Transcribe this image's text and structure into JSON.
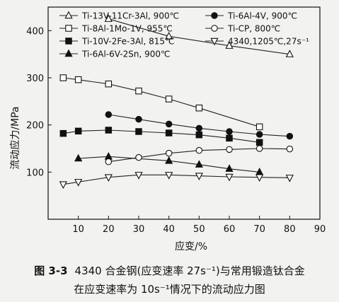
{
  "chart_data": {
    "type": "line",
    "xlabel": "应变/%",
    "ylabel": "流动应力/MPa",
    "xlim": [
      0,
      90
    ],
    "ylim": [
      0,
      450
    ],
    "xticks": [
      10,
      20,
      30,
      40,
      50,
      60,
      70,
      80,
      90
    ],
    "yticks": [
      100,
      200,
      300,
      400
    ],
    "grid": false,
    "legend_position": "top",
    "series": [
      {
        "name": "Ti-13V-11Cr-3Al, 900℃",
        "marker": "triangle-up-open",
        "x": [
          20,
          40,
          60,
          80
        ],
        "y": [
          425,
          388,
          368,
          350
        ]
      },
      {
        "name": "Ti-8Al-1Mo-1V, 955℃",
        "marker": "square-open",
        "x": [
          5,
          10,
          20,
          30,
          40,
          50,
          70
        ],
        "y": [
          300,
          296,
          287,
          272,
          255,
          236,
          196
        ]
      },
      {
        "name": "Ti-10V-2Fe-3Al, 815℃",
        "marker": "square-filled",
        "x": [
          5,
          10,
          20,
          30,
          40,
          50,
          60,
          70
        ],
        "y": [
          182,
          187,
          189,
          186,
          183,
          179,
          172,
          163
        ]
      },
      {
        "name": "Ti-6Al-6V-2Sn, 900℃",
        "marker": "triangle-up-filled",
        "x": [
          10,
          20,
          40,
          50,
          60,
          70
        ],
        "y": [
          129,
          133,
          124,
          116,
          107,
          100
        ]
      },
      {
        "name": "Ti-6Al-4V, 900℃",
        "marker": "circle-filled",
        "x": [
          20,
          30,
          40,
          50,
          60,
          70,
          80
        ],
        "y": [
          222,
          212,
          202,
          193,
          186,
          180,
          176
        ]
      },
      {
        "name": "Ti-CP, 800℃",
        "marker": "circle-open",
        "x": [
          20,
          30,
          40,
          50,
          60,
          70,
          80
        ],
        "y": [
          122,
          131,
          140,
          146,
          148,
          150,
          149
        ]
      },
      {
        "name": "4340,1205℃,27s⁻¹",
        "marker": "triangle-down-open",
        "x": [
          5,
          10,
          20,
          30,
          40,
          50,
          60,
          70,
          80
        ],
        "y": [
          74,
          79,
          89,
          94,
          94,
          92,
          90,
          89,
          88
        ]
      }
    ]
  },
  "caption": {
    "number": "图 3-3",
    "line1": "4340 合金钢(应变速率 27s⁻¹)与常用锻造钛合金",
    "line2": "在应变速率为 10s⁻¹情况下的流动应力图"
  }
}
